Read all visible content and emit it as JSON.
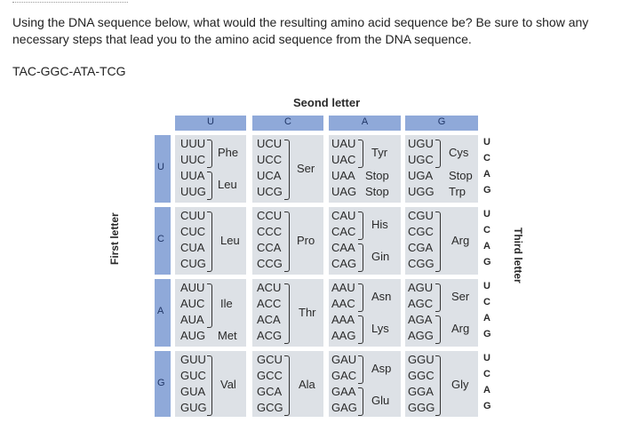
{
  "question": "Using the DNA sequence below, what would the resulting amino acid sequence be? Be sure to show any necessary steps that lead you to the amino acid sequence from the DNA sequence.",
  "dna_sequence": "TAC-GGC-ATA-TCG",
  "table": {
    "title": "Seond letter",
    "first_letter_label": "First letter",
    "third_letter_label": "Third letter",
    "second_letters": [
      "U",
      "C",
      "A",
      "G"
    ],
    "first_letters": [
      "U",
      "C",
      "A",
      "G"
    ],
    "third_letters": [
      "U",
      "C",
      "A",
      "G"
    ],
    "rows": [
      {
        "first": "U",
        "cells": [
          {
            "codons": [
              "UUU",
              "UUC",
              "UUA",
              "UUG"
            ],
            "amino": [
              "Phe",
              "Leu"
            ]
          },
          {
            "codons": [
              "UCU",
              "UCC",
              "UCA",
              "UCG"
            ],
            "amino": [
              "Ser"
            ]
          },
          {
            "codons": [
              "UAU",
              "UAC",
              "UAA",
              "UAG"
            ],
            "amino": [
              "Tyr",
              "Stop",
              "Stop"
            ]
          },
          {
            "codons": [
              "UGU",
              "UGC",
              "UGA",
              "UGG"
            ],
            "amino": [
              "Cys",
              "Stop",
              "Trp"
            ]
          }
        ]
      },
      {
        "first": "C",
        "cells": [
          {
            "codons": [
              "CUU",
              "CUC",
              "CUA",
              "CUG"
            ],
            "amino": [
              "Leu"
            ]
          },
          {
            "codons": [
              "CCU",
              "CCC",
              "CCA",
              "CCG"
            ],
            "amino": [
              "Pro"
            ]
          },
          {
            "codons": [
              "CAU",
              "CAC",
              "CAA",
              "CAG"
            ],
            "amino": [
              "His",
              "Gin"
            ]
          },
          {
            "codons": [
              "CGU",
              "CGC",
              "CGA",
              "CGG"
            ],
            "amino": [
              "Arg"
            ]
          }
        ]
      },
      {
        "first": "A",
        "cells": [
          {
            "codons": [
              "AUU",
              "AUC",
              "AUA",
              "AUG"
            ],
            "amino": [
              "Ile",
              "Met"
            ]
          },
          {
            "codons": [
              "ACU",
              "ACC",
              "ACA",
              "ACG"
            ],
            "amino": [
              "Thr"
            ]
          },
          {
            "codons": [
              "AAU",
              "AAC",
              "AAA",
              "AAG"
            ],
            "amino": [
              "Asn",
              "Lys"
            ]
          },
          {
            "codons": [
              "AGU",
              "AGC",
              "AGA",
              "AGG"
            ],
            "amino": [
              "Ser",
              "Arg"
            ]
          }
        ]
      },
      {
        "first": "G",
        "cells": [
          {
            "codons": [
              "GUU",
              "GUC",
              "GUA",
              "GUG"
            ],
            "amino": [
              "Val"
            ]
          },
          {
            "codons": [
              "GCU",
              "GCC",
              "GCA",
              "GCG"
            ],
            "amino": [
              "Ala"
            ]
          },
          {
            "codons": [
              "GAU",
              "GAC",
              "GAA",
              "GAG"
            ],
            "amino": [
              "Asp",
              "Glu"
            ]
          },
          {
            "codons": [
              "GGU",
              "GGC",
              "GGA",
              "GGG"
            ],
            "amino": [
              "Gly"
            ]
          }
        ]
      }
    ]
  },
  "colors": {
    "header": "#8fa9d9",
    "block": "#dde1e6",
    "header_text": "#1f3566"
  }
}
